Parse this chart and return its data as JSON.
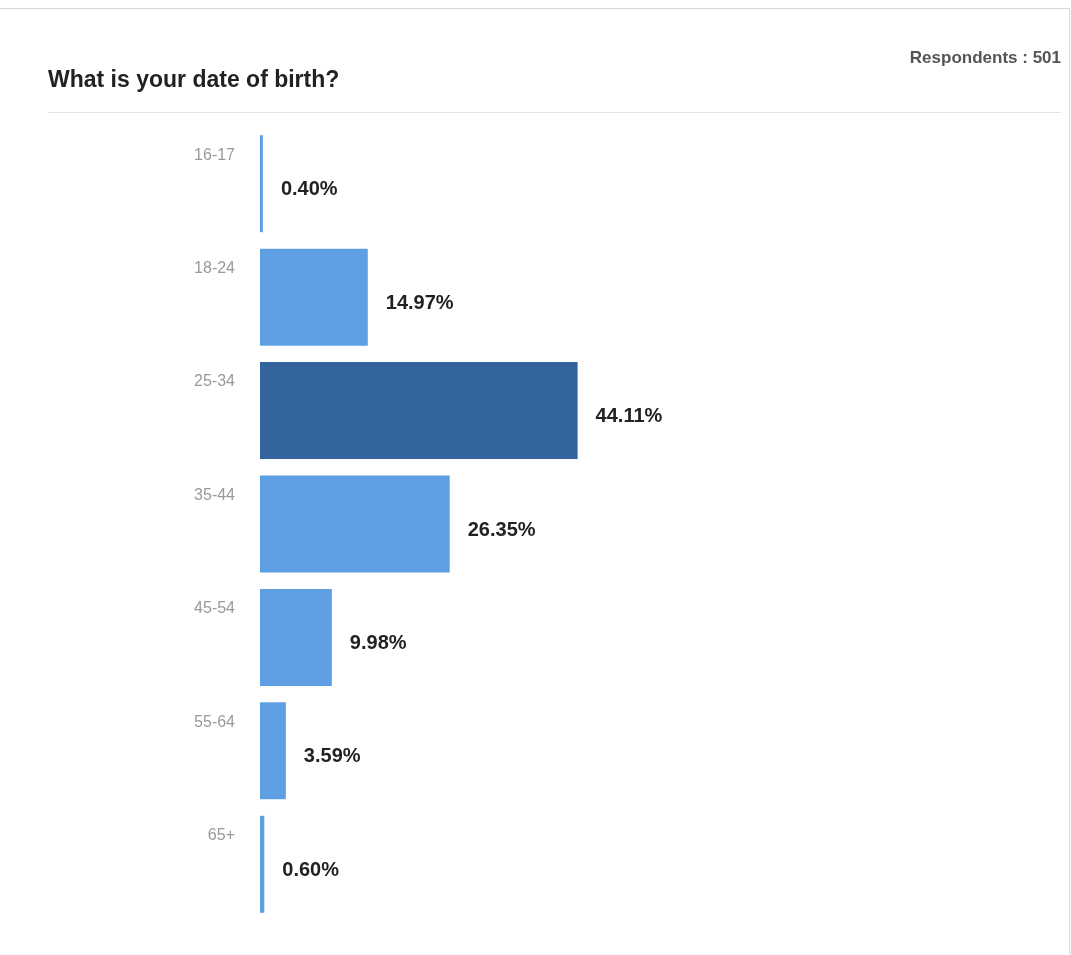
{
  "chart_data": {
    "type": "bar",
    "orientation": "horizontal",
    "title": "What is your date of birth?",
    "annotations": [
      "Respondents : 501"
    ],
    "categories": [
      "16-17",
      "18-24",
      "25-34",
      "35-44",
      "45-54",
      "55-64",
      "65+"
    ],
    "values": [
      0.4,
      14.97,
      44.11,
      26.35,
      9.98,
      3.59,
      0.6
    ],
    "colors": [
      "#5e9fe4",
      "#5e9fe4",
      "#33649e",
      "#5e9fe4",
      "#5e9fe4",
      "#5e9fe4",
      "#5e9fe4"
    ],
    "value_labels": [
      "0.40%",
      "14.97%",
      "44.11%",
      "26.35%",
      "9.98%",
      "3.59%",
      "0.60%"
    ]
  }
}
